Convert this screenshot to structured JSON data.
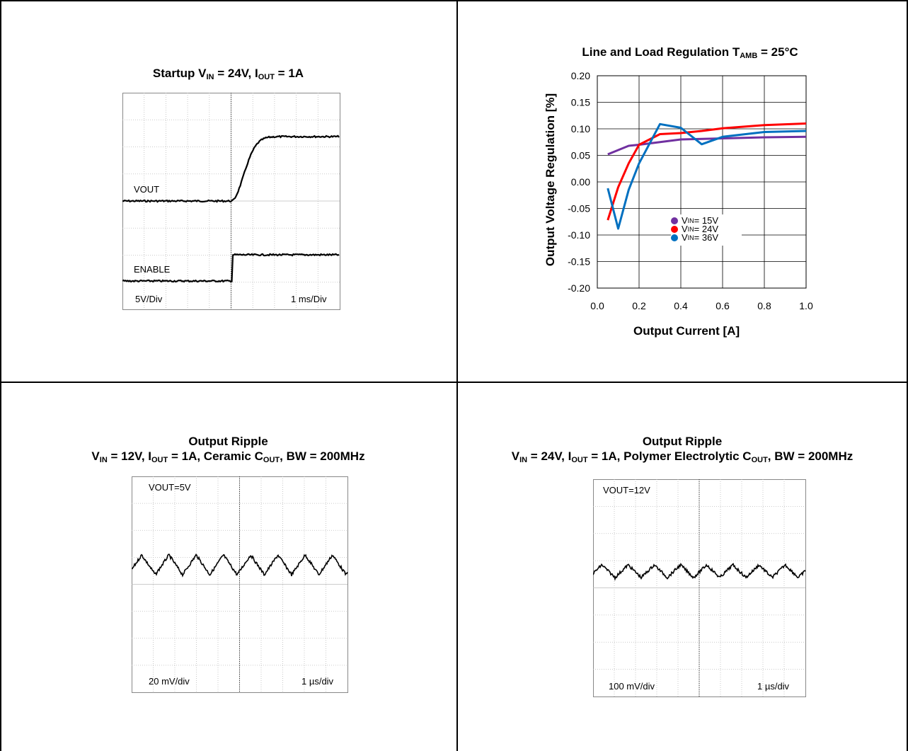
{
  "panels": {
    "startup": {
      "title_parts": [
        "Startup V",
        "IN",
        " = 24V, I",
        "OUT",
        " = 1A"
      ],
      "labels": {
        "vout": "VOUT",
        "enable": "ENABLE",
        "scale_v": "5V/Div",
        "scale_t": "1 ms/Div"
      }
    },
    "regulation": {
      "title_parts": [
        "Line and Load Regulation T",
        "AMB",
        " = 25°C"
      ]
    },
    "ripple_12v": {
      "title_line1": "Output Ripple",
      "title_parts": [
        "V",
        "IN",
        " = 12V, I",
        "OUT",
        " = 1A, Ceramic C",
        "OUT",
        ", BW = 200MHz"
      ],
      "labels": {
        "vout": "VOUT=5V",
        "scale_v": "20 mV/div",
        "scale_t": "1 µs/div"
      }
    },
    "ripple_24v": {
      "title_line1": "Output Ripple",
      "title_parts": [
        "V",
        "IN",
        " = 24V, I",
        "OUT",
        " = 1A, Polymer Electrolytic C",
        "OUT",
        ", BW = 200MHz"
      ],
      "labels": {
        "vout": "VOUT=12V",
        "scale_v": "100 mV/div",
        "scale_t": "1 µs/div"
      }
    }
  },
  "chart_data": [
    {
      "type": "line",
      "title": "Line and Load Regulation TAMB = 25°C",
      "xlabel": "Output Current [A]",
      "ylabel": "Output Voltage Regulation [%]",
      "xlim": [
        0.0,
        1.0
      ],
      "ylim": [
        -0.2,
        0.2
      ],
      "x_ticks": [
        "0.0",
        "0.2",
        "0.4",
        "0.6",
        "0.8",
        "1.0"
      ],
      "y_ticks": [
        "0.20",
        "0.15",
        "0.10",
        "0.05",
        "0.00",
        "-0.05",
        "-0.10",
        "-0.15",
        "-0.20"
      ],
      "grid": true,
      "legend_position": "center",
      "series": [
        {
          "name_parts": [
            "V",
            "IN",
            " = 15V"
          ],
          "color": "#7030a0",
          "x": [
            0.05,
            0.15,
            0.2,
            0.3,
            0.4,
            0.6,
            0.8,
            1.0
          ],
          "y": [
            0.052,
            0.068,
            0.07,
            0.075,
            0.08,
            0.082,
            0.084,
            0.085
          ]
        },
        {
          "name_parts": [
            "V",
            "IN",
            " = 24V"
          ],
          "color": "#ff0000",
          "x": [
            0.05,
            0.1,
            0.15,
            0.2,
            0.3,
            0.4,
            0.5,
            0.6,
            0.8,
            1.0
          ],
          "y": [
            -0.072,
            -0.01,
            0.035,
            0.07,
            0.09,
            0.092,
            0.096,
            0.101,
            0.107,
            0.11
          ]
        },
        {
          "name_parts": [
            "V",
            "IN",
            " = 36V"
          ],
          "color": "#0070c0",
          "x": [
            0.05,
            0.1,
            0.15,
            0.2,
            0.3,
            0.4,
            0.5,
            0.6,
            0.8,
            1.0
          ],
          "y": [
            -0.012,
            -0.088,
            -0.015,
            0.035,
            0.109,
            0.102,
            0.071,
            0.085,
            0.094,
            0.096
          ]
        }
      ]
    }
  ]
}
